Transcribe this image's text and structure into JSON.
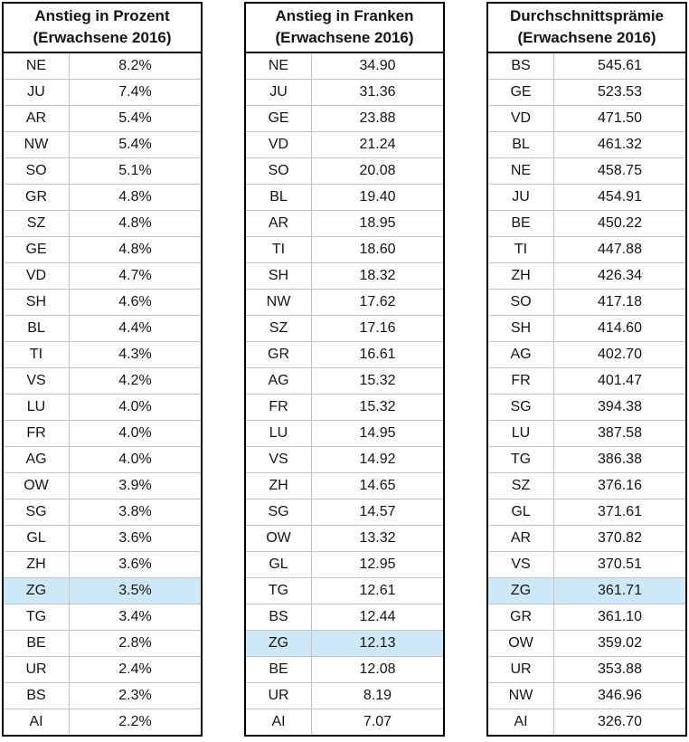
{
  "chart_data": [
    {
      "type": "table",
      "title": "Anstieg in Prozent (Erwachsene 2016)",
      "title_lines": [
        "Anstieg in Prozent",
        "(Erwachsene 2016)"
      ],
      "highlighted_row": "ZG",
      "rows": [
        [
          "NE",
          "8.2%"
        ],
        [
          "JU",
          "7.4%"
        ],
        [
          "AR",
          "5.4%"
        ],
        [
          "NW",
          "5.4%"
        ],
        [
          "SO",
          "5.1%"
        ],
        [
          "GR",
          "4.8%"
        ],
        [
          "SZ",
          "4.8%"
        ],
        [
          "GE",
          "4.8%"
        ],
        [
          "VD",
          "4.7%"
        ],
        [
          "SH",
          "4.6%"
        ],
        [
          "BL",
          "4.4%"
        ],
        [
          "TI",
          "4.3%"
        ],
        [
          "VS",
          "4.2%"
        ],
        [
          "LU",
          "4.0%"
        ],
        [
          "FR",
          "4.0%"
        ],
        [
          "AG",
          "4.0%"
        ],
        [
          "OW",
          "3.9%"
        ],
        [
          "SG",
          "3.8%"
        ],
        [
          "GL",
          "3.6%"
        ],
        [
          "ZH",
          "3.6%"
        ],
        [
          "ZG",
          "3.5%"
        ],
        [
          "TG",
          "3.4%"
        ],
        [
          "BE",
          "2.8%"
        ],
        [
          "UR",
          "2.4%"
        ],
        [
          "BS",
          "2.3%"
        ],
        [
          "AI",
          "2.2%"
        ]
      ]
    },
    {
      "type": "table",
      "title": "Anstieg in Franken (Erwachsene 2016)",
      "title_lines": [
        "Anstieg in Franken",
        "(Erwachsene 2016)"
      ],
      "highlighted_row": "ZG",
      "rows": [
        [
          "NE",
          "34.90"
        ],
        [
          "JU",
          "31.36"
        ],
        [
          "GE",
          "23.88"
        ],
        [
          "VD",
          "21.24"
        ],
        [
          "SO",
          "20.08"
        ],
        [
          "BL",
          "19.40"
        ],
        [
          "AR",
          "18.95"
        ],
        [
          "TI",
          "18.60"
        ],
        [
          "SH",
          "18.32"
        ],
        [
          "NW",
          "17.62"
        ],
        [
          "SZ",
          "17.16"
        ],
        [
          "GR",
          "16.61"
        ],
        [
          "AG",
          "15.32"
        ],
        [
          "FR",
          "15.32"
        ],
        [
          "LU",
          "14.95"
        ],
        [
          "VS",
          "14.92"
        ],
        [
          "ZH",
          "14.65"
        ],
        [
          "SG",
          "14.57"
        ],
        [
          "OW",
          "13.32"
        ],
        [
          "GL",
          "12.95"
        ],
        [
          "TG",
          "12.61"
        ],
        [
          "BS",
          "12.44"
        ],
        [
          "ZG",
          "12.13"
        ],
        [
          "BE",
          "12.08"
        ],
        [
          "UR",
          "8.19"
        ],
        [
          "AI",
          "7.07"
        ]
      ]
    },
    {
      "type": "table",
      "title": "Durchschnittsprämie (Erwachsene 2016)",
      "title_lines": [
        "Durchschnittsprämie",
        "(Erwachsene 2016)"
      ],
      "highlighted_row": "ZG",
      "rows": [
        [
          "BS",
          "545.61"
        ],
        [
          "GE",
          "523.53"
        ],
        [
          "VD",
          "471.50"
        ],
        [
          "BL",
          "461.32"
        ],
        [
          "NE",
          "458.75"
        ],
        [
          "JU",
          "454.91"
        ],
        [
          "BE",
          "450.22"
        ],
        [
          "TI",
          "447.88"
        ],
        [
          "ZH",
          "426.34"
        ],
        [
          "SO",
          "417.18"
        ],
        [
          "SH",
          "414.60"
        ],
        [
          "AG",
          "402.70"
        ],
        [
          "FR",
          "401.47"
        ],
        [
          "SG",
          "394.38"
        ],
        [
          "LU",
          "387.58"
        ],
        [
          "TG",
          "386.38"
        ],
        [
          "SZ",
          "376.16"
        ],
        [
          "GL",
          "371.61"
        ],
        [
          "AR",
          "370.82"
        ],
        [
          "VS",
          "370.51"
        ],
        [
          "ZG",
          "361.71"
        ],
        [
          "GR",
          "361.10"
        ],
        [
          "OW",
          "359.02"
        ],
        [
          "UR",
          "353.88"
        ],
        [
          "NW",
          "346.96"
        ],
        [
          "AI",
          "326.70"
        ]
      ]
    }
  ],
  "colors": {
    "highlight": "#cde9f7",
    "border": "#000000",
    "grid": "#c2c2c2",
    "text": "#141414"
  }
}
